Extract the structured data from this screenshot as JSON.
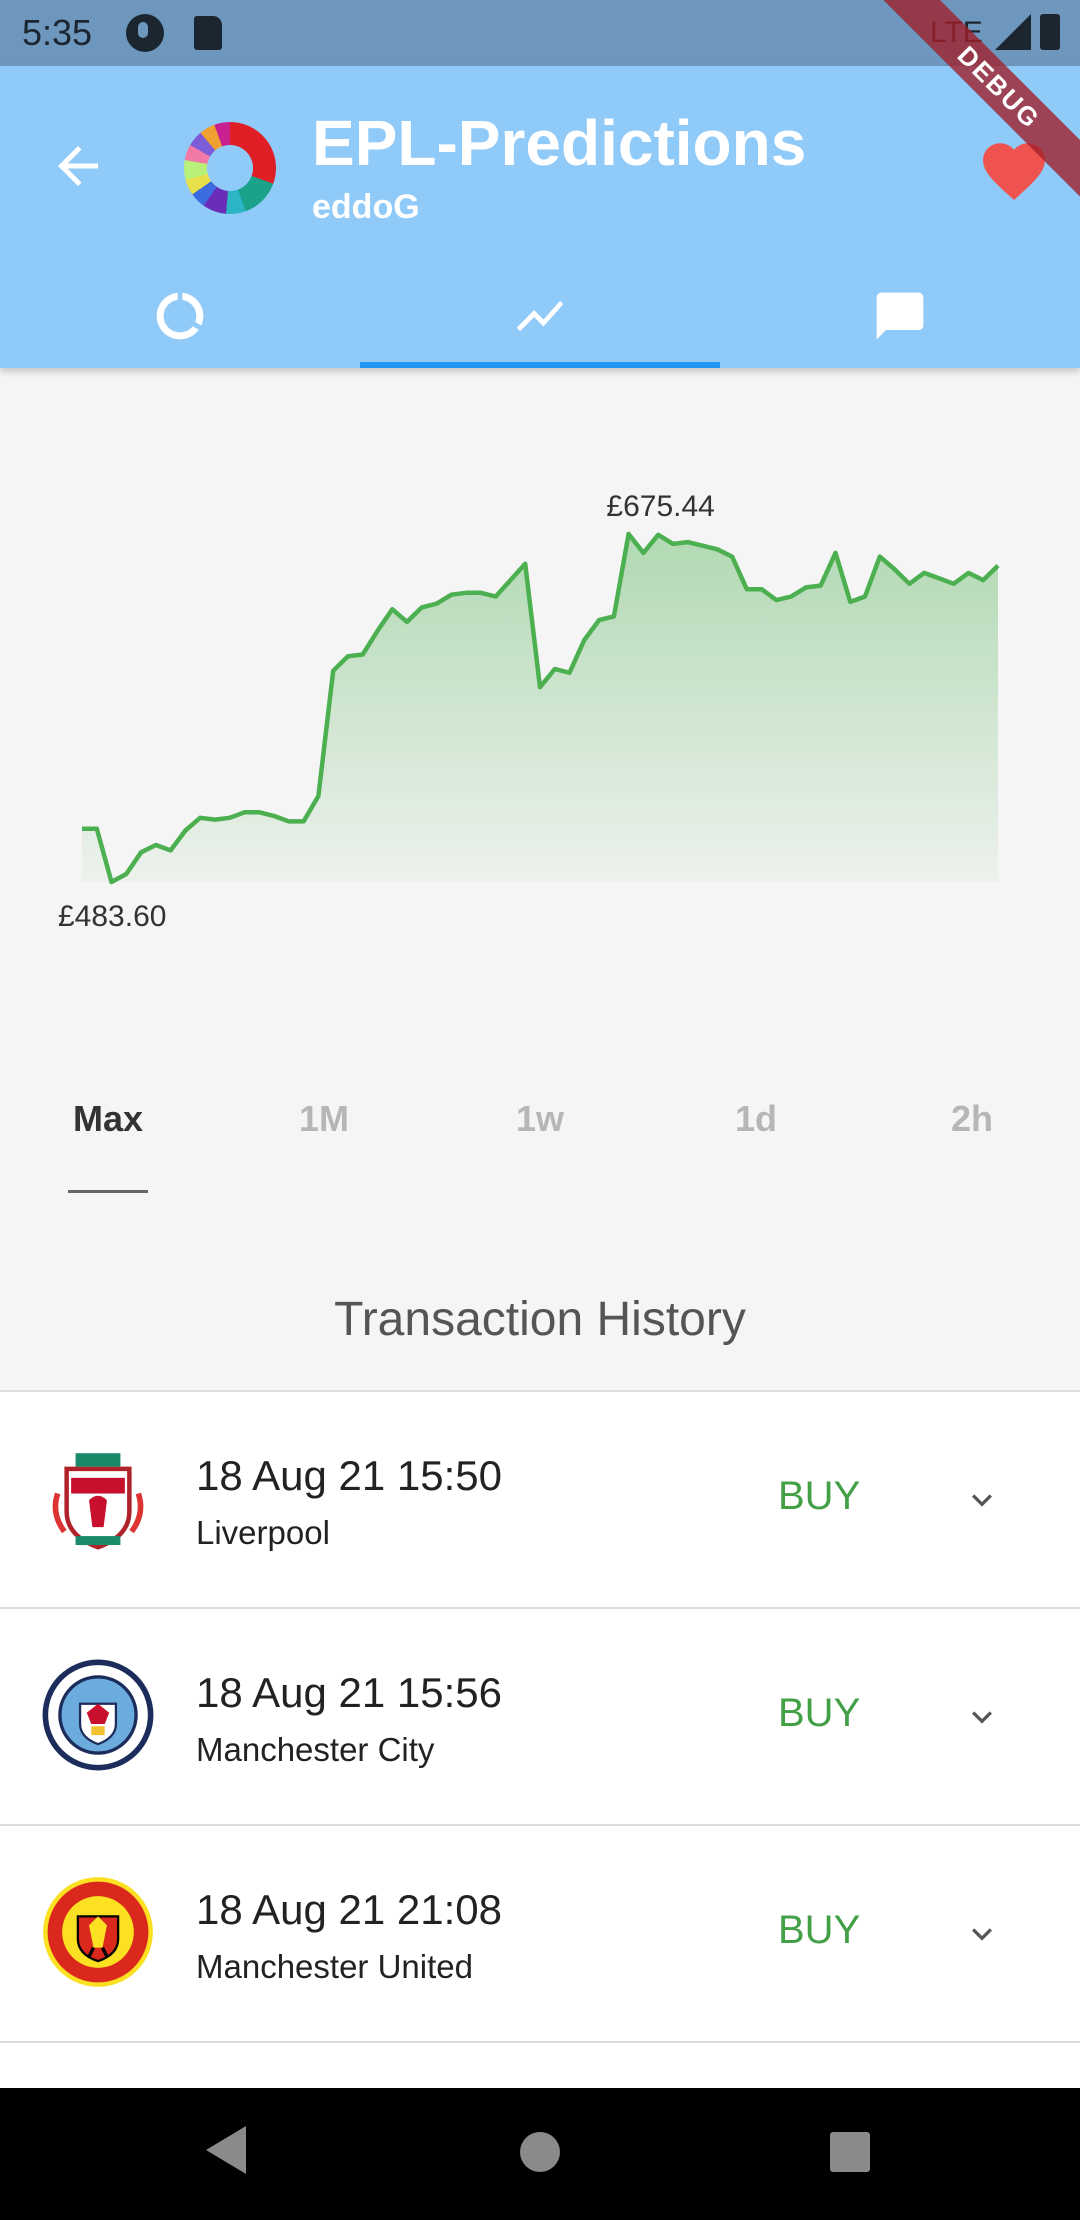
{
  "status_bar": {
    "time": "5:35",
    "network": "LTE"
  },
  "app_bar": {
    "title": "EPL-Predictions",
    "subtitle": "eddoG",
    "debug_label": "DEBUG",
    "tabs": [
      {
        "icon": "donut-icon"
      },
      {
        "icon": "trend-line-icon"
      },
      {
        "icon": "chat-icon"
      }
    ],
    "selected_tab": 1,
    "accent_color": "#90caf9",
    "indicator_color": "#2196f3",
    "favorite_color": "#ef5350"
  },
  "chart_data": {
    "type": "area",
    "y_unit": "£",
    "max_label": "£675.44",
    "min_label": "£483.60",
    "line_color": "#4caf50",
    "values": [
      513,
      513,
      483.6,
      488,
      500,
      504,
      501,
      512,
      519,
      518,
      519,
      522,
      522,
      520,
      517,
      517,
      531,
      600,
      608,
      609,
      622,
      634,
      627,
      635,
      637,
      642,
      643,
      643,
      641,
      650,
      659,
      591,
      601,
      599,
      617,
      628,
      630,
      675.44,
      665,
      675,
      670,
      671,
      669,
      667,
      663,
      645,
      645,
      639,
      641,
      646,
      647,
      665,
      638,
      641,
      663,
      656,
      648,
      654,
      651,
      648,
      654,
      650,
      658
    ]
  },
  "range_tabs": [
    "Max",
    "1M",
    "1w",
    "1d",
    "2h"
  ],
  "selected_range": 0,
  "section_title": "Transaction History",
  "transactions": [
    {
      "date": "18 Aug 21 15:50",
      "team": "Liverpool",
      "action": "BUY",
      "crest": "liverpool-crest-icon"
    },
    {
      "date": "18 Aug 21 15:56",
      "team": "Manchester City",
      "action": "BUY",
      "crest": "man-city-crest-icon"
    },
    {
      "date": "18 Aug 21 21:08",
      "team": "Manchester United",
      "action": "BUY",
      "crest": "man-united-crest-icon"
    }
  ]
}
